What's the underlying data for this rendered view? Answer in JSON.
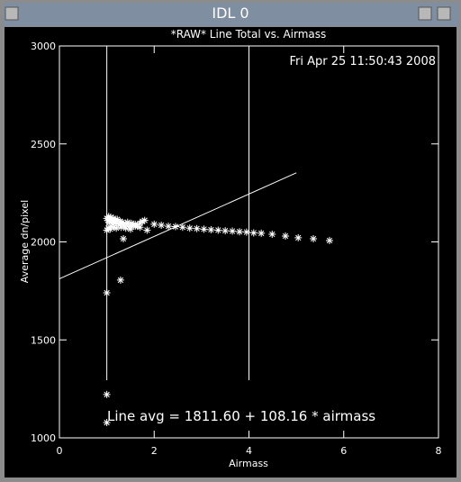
{
  "window": {
    "title": "IDL 0"
  },
  "chart_data": {
    "type": "scatter",
    "title": "*RAW* Line Total vs. Airmass",
    "subtitle": "Fri Apr 25 11:50:43 2008",
    "x_label": "Airmass",
    "y_label": "Average dn/pixel",
    "annotation": "Line avg = 1811.60 + 108.16 * airmass",
    "xlim": [
      0,
      8
    ],
    "ylim": [
      1000,
      3000
    ],
    "xticks": [
      0,
      2,
      4,
      6,
      8
    ],
    "yticks": [
      1000,
      1500,
      2000,
      2500,
      3000
    ],
    "color": "#ffffff",
    "series": [
      {
        "color": "#ffffff",
        "x": [
          1.0,
          1.02,
          1.04,
          1.06,
          1.08,
          1.1,
          1.12,
          1.14,
          1.16,
          1.18,
          1.2,
          1.22,
          1.25,
          1.28,
          1.3,
          1.33,
          1.36,
          1.4,
          1.44,
          1.48,
          1.52,
          1.56,
          1.6,
          1.65,
          1.7,
          1.75,
          1.8,
          1.0,
          1.03,
          1.07,
          1.1,
          1.15,
          1.2,
          1.3,
          1.4,
          1.5,
          1.6,
          1.7,
          1.85,
          2.0,
          2.15,
          2.3,
          2.45,
          2.6,
          2.75,
          2.9,
          3.05,
          3.2,
          3.35,
          3.5,
          3.65,
          3.8,
          3.95,
          4.1,
          4.26,
          4.49,
          4.77,
          5.04,
          5.36,
          5.7,
          1.0,
          1.29,
          1.35,
          1.0,
          1.0
        ],
        "values": [
          2120,
          2110,
          2130,
          2100,
          2125,
          2115,
          2105,
          2120,
          2095,
          2110,
          2100,
          2115,
          2090,
          2105,
          2095,
          2100,
          2085,
          2090,
          2100,
          2080,
          2095,
          2085,
          2090,
          2080,
          2095,
          2105,
          2110,
          2060,
          2070,
          2065,
          2080,
          2075,
          2070,
          2075,
          2070,
          2065,
          2080,
          2075,
          2060,
          2090,
          2085,
          2080,
          2078,
          2075,
          2070,
          2068,
          2065,
          2062,
          2060,
          2057,
          2055,
          2052,
          2050,
          2046,
          2044,
          2039,
          2030,
          2021,
          2016,
          2007,
          1740,
          1805,
          2016,
          1221,
          1078
        ]
      }
    ],
    "fit": {
      "intercept": 1811.6,
      "slope": 108.16,
      "x": [
        0,
        5
      ]
    },
    "vlines": {
      "x": [
        1,
        4
      ],
      "ymin": 1294
    }
  }
}
